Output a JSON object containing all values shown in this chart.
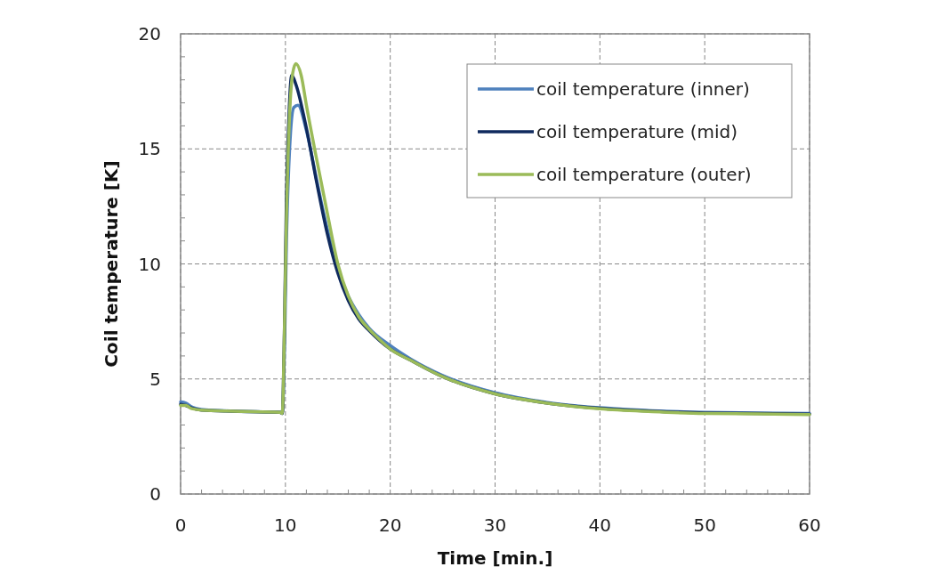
{
  "chart_data": {
    "type": "line",
    "xlabel": "Time [min.]",
    "ylabel": "Coil temperature [K]",
    "xlim": [
      0,
      60
    ],
    "ylim": [
      0,
      20
    ],
    "xticks": [
      0,
      10,
      20,
      30,
      40,
      50,
      60
    ],
    "yticks": [
      0,
      5,
      10,
      15,
      20
    ],
    "grid": true,
    "legend": "top right",
    "marker": "none",
    "line_style": "solid",
    "series": [
      {
        "name": "coil temperature (inner)",
        "color": "#4f81bd",
        "x": [
          0,
          0.5,
          1,
          2,
          5,
          9.5,
          9.7,
          9.9,
          10.1,
          10.4,
          10.8,
          11.2,
          12,
          13,
          14,
          15,
          16,
          17,
          18,
          20,
          22,
          25,
          30,
          35,
          40,
          45,
          50,
          55,
          60
        ],
        "values": [
          4.0,
          3.95,
          3.8,
          3.68,
          3.6,
          3.55,
          3.5,
          6,
          11,
          15,
          16.8,
          16.9,
          15.8,
          13.6,
          11.5,
          9.8,
          8.6,
          7.8,
          7.2,
          6.45,
          5.85,
          5.15,
          4.4,
          3.98,
          3.75,
          3.62,
          3.55,
          3.52,
          3.5
        ]
      },
      {
        "name": "coil temperature (mid)",
        "color": "#0f2a5e",
        "x": [
          0,
          0.5,
          1,
          2,
          5,
          9.5,
          9.7,
          9.9,
          10.1,
          10.3,
          10.6,
          11,
          12,
          13,
          14,
          15,
          16,
          17,
          18,
          20,
          22,
          25,
          30,
          35,
          40,
          45,
          50,
          55,
          60
        ],
        "values": [
          3.9,
          3.85,
          3.75,
          3.65,
          3.6,
          3.55,
          3.5,
          7,
          13,
          16,
          18.2,
          17.8,
          15.9,
          13.5,
          11.3,
          9.6,
          8.4,
          7.6,
          7.1,
          6.3,
          5.8,
          5.1,
          4.35,
          3.95,
          3.72,
          3.6,
          3.52,
          3.5,
          3.47
        ]
      },
      {
        "name": "coil temperature (outer)",
        "color": "#9bbb59",
        "x": [
          0,
          0.5,
          1,
          2,
          5,
          9.5,
          9.7,
          9.9,
          10.1,
          10.4,
          10.7,
          11,
          11.5,
          12,
          13,
          14,
          15,
          16,
          17,
          18,
          19,
          20,
          22,
          25,
          30,
          35,
          40,
          45,
          50,
          55,
          60
        ],
        "values": [
          3.85,
          3.85,
          3.72,
          3.65,
          3.6,
          3.55,
          3.5,
          7,
          12,
          16.5,
          18.3,
          18.7,
          18.2,
          16.9,
          14.5,
          12.2,
          10,
          8.6,
          7.7,
          7.15,
          6.7,
          6.3,
          5.8,
          5.1,
          4.35,
          3.95,
          3.7,
          3.58,
          3.5,
          3.48,
          3.45
        ]
      }
    ]
  }
}
